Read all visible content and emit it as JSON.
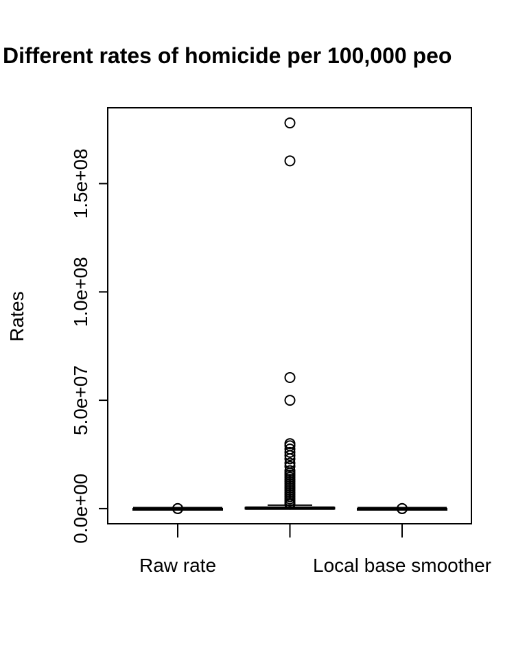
{
  "chart_data": {
    "type": "boxplot",
    "title": "Different rates of homicide per 100,000 peo",
    "ylabel": "Rates",
    "xlabel": "",
    "ylim": [
      -7000000,
      185000000
    ],
    "yticks": [
      {
        "value": 0,
        "label": "0.0e+00"
      },
      {
        "value": 50000000,
        "label": "5.0e+07"
      },
      {
        "value": 100000000,
        "label": "1.0e+08"
      },
      {
        "value": 150000000,
        "label": "1.5e+08"
      }
    ],
    "x_tick_labels": [
      {
        "pos": 1,
        "label": "Raw rate"
      },
      {
        "pos": 3,
        "label": "Local base smoother"
      }
    ],
    "boxes": [
      {
        "pos": 1,
        "min": 0,
        "q1": 0,
        "median": 0,
        "q3": 0,
        "max": 0,
        "outliers": [
          0,
          0
        ]
      },
      {
        "pos": 2,
        "min": 0,
        "q1": 0,
        "median": 200000,
        "q3": 500000,
        "max": 1600000,
        "outliers": [
          178000000,
          160500000,
          60500000,
          50000000,
          30000000,
          29000000,
          27500000,
          26000000,
          24500000,
          23000000,
          21000000,
          19500000,
          17500000,
          16500000,
          15500000,
          14500000,
          13500000,
          12500000,
          11500000,
          10500000,
          9500000,
          8500000,
          7500000,
          6500000,
          5500000,
          4500000,
          3500000,
          2500000,
          2000000
        ]
      },
      {
        "pos": 3,
        "min": 0,
        "q1": 0,
        "median": 0,
        "q3": 0,
        "max": 0,
        "outliers": [
          0,
          0
        ]
      }
    ],
    "grid": false
  }
}
